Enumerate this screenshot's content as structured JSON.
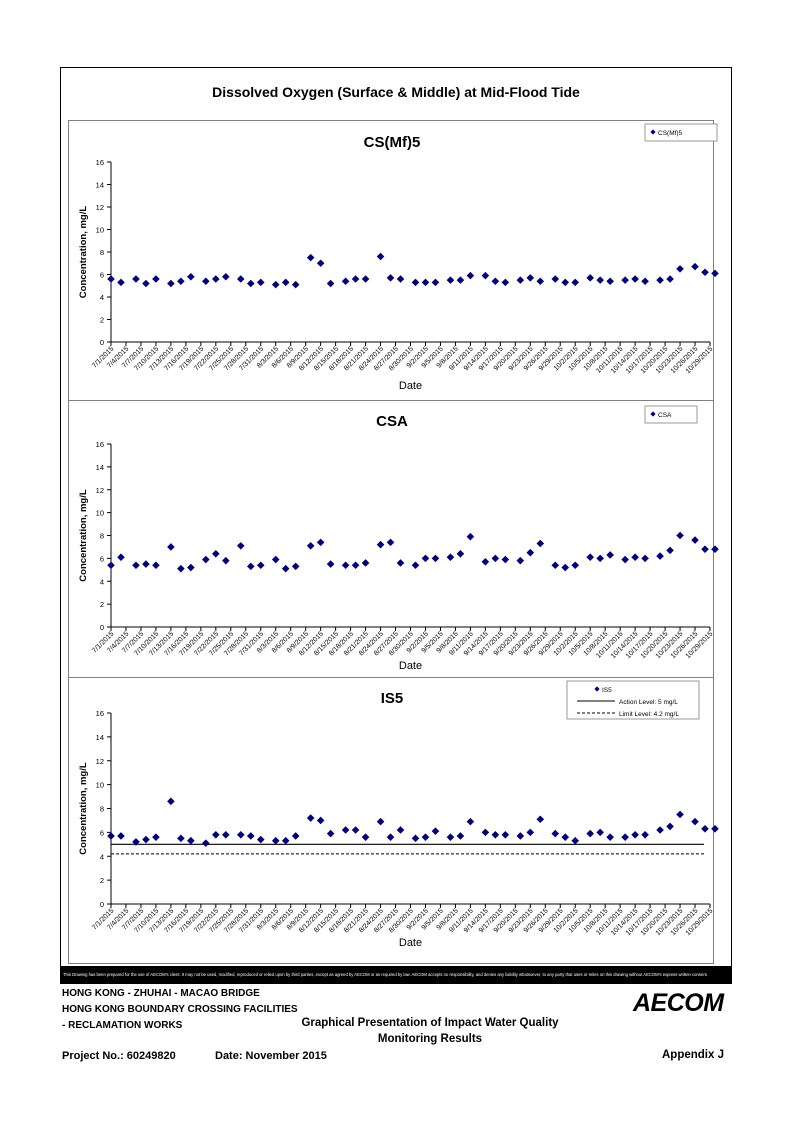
{
  "page_title": "Dissolved Oxygen (Surface & Middle) at Mid-Flood Tide",
  "disclaimer": "This Drawing has been prepared for the use of AECOM's client. It may not be used, modified, reproduced or relied upon by third parties, except as agreed by AECOM or as required by law. AECOM accepts no responsibility, and denies any liability whatsoever, to any party that uses or relies on this drawing without AECOM's express written consent.",
  "footer": {
    "project_line1": "HONG KONG - ZHUHAI - MACAO BRIDGE",
    "project_line2": "HONG KONG BOUNDARY CROSSING FACILITIES",
    "project_line3": "- RECLAMATION WORKS",
    "heading_line1": "Graphical Presentation of Impact Water Quality",
    "heading_line2": "Monitoring Results",
    "project_no": "Project No.: 60249820",
    "date": "Date: November 2015",
    "appendix": "Appendix J",
    "logo": "AECOM"
  },
  "colors": {
    "marker": "#00007f",
    "frame": "#000000",
    "panel_border": "#808080"
  },
  "chart_data": [
    {
      "type": "scatter",
      "title": "CS(Mf)5",
      "xlabel": "Date",
      "ylabel": "Concentration, mg/L",
      "ylim": [
        0,
        16
      ],
      "yticks": [
        "0",
        "2",
        "4",
        "6",
        "8",
        "10",
        "12",
        "14",
        "16"
      ],
      "xticks": [
        "7/1/2015",
        "7/4/2015",
        "7/7/2015",
        "7/10/2015",
        "7/13/2015",
        "7/16/2015",
        "7/19/2015",
        "7/22/2015",
        "7/25/2015",
        "7/28/2015",
        "7/31/2015",
        "8/3/2015",
        "8/6/2015",
        "8/9/2015",
        "8/12/2015",
        "8/15/2015",
        "8/18/2015",
        "8/21/2015",
        "8/24/2015",
        "8/27/2015",
        "8/30/2015",
        "9/2/2015",
        "9/5/2015",
        "9/8/2015",
        "9/11/2015",
        "9/14/2015",
        "9/17/2015",
        "9/20/2015",
        "9/23/2015",
        "9/26/2015",
        "9/29/2015",
        "10/2/2015",
        "10/5/2015",
        "10/8/2015",
        "10/11/2015",
        "10/14/2015",
        "10/17/2015",
        "10/20/2015",
        "10/23/2015",
        "10/26/2015",
        "10/29/2015"
      ],
      "grid": false,
      "legend_position": "top-right",
      "series": [
        {
          "name": "CS(Mf)5",
          "marker": "diamond",
          "x": [
            "7/1/2015",
            "7/3/2015",
            "7/6/2015",
            "7/8/2015",
            "7/10/2015",
            "7/13/2015",
            "7/15/2015",
            "7/17/2015",
            "7/20/2015",
            "7/22/2015",
            "7/24/2015",
            "7/27/2015",
            "7/29/2015",
            "7/31/2015",
            "8/3/2015",
            "8/5/2015",
            "8/7/2015",
            "8/10/2015",
            "8/12/2015",
            "8/14/2015",
            "8/17/2015",
            "8/19/2015",
            "8/21/2015",
            "8/24/2015",
            "8/26/2015",
            "8/28/2015",
            "8/31/2015",
            "9/2/2015",
            "9/4/2015",
            "9/7/2015",
            "9/9/2015",
            "9/11/2015",
            "9/14/2015",
            "9/16/2015",
            "9/18/2015",
            "9/21/2015",
            "9/23/2015",
            "9/25/2015",
            "9/28/2015",
            "9/30/2015",
            "10/2/2015",
            "10/5/2015",
            "10/7/2015",
            "10/9/2015",
            "10/12/2015",
            "10/14/2015",
            "10/16/2015",
            "10/19/2015",
            "10/21/2015",
            "10/23/2015",
            "10/26/2015",
            "10/28/2015",
            "10/30/2015"
          ],
          "y": [
            5.6,
            5.3,
            5.6,
            5.2,
            5.6,
            5.2,
            5.4,
            5.8,
            5.4,
            5.6,
            5.8,
            5.6,
            5.2,
            5.3,
            5.1,
            5.3,
            5.1,
            7.5,
            7.0,
            5.2,
            5.4,
            5.6,
            5.6,
            7.6,
            5.7,
            5.6,
            5.3,
            5.3,
            5.3,
            5.5,
            5.5,
            5.9,
            5.9,
            5.4,
            5.3,
            5.5,
            5.7,
            5.4,
            5.6,
            5.3,
            5.3,
            5.7,
            5.5,
            5.4,
            5.5,
            5.6,
            5.4,
            5.5,
            5.6,
            6.5,
            6.7,
            6.2,
            6.1
          ]
        }
      ]
    },
    {
      "type": "scatter",
      "title": "CSA",
      "xlabel": "Date",
      "ylabel": "Concentration, mg/L",
      "ylim": [
        0,
        16
      ],
      "yticks": [
        "0",
        "2",
        "4",
        "6",
        "8",
        "10",
        "12",
        "14",
        "16"
      ],
      "xticks": [
        "7/1/2015",
        "7/4/2015",
        "7/7/2015",
        "7/10/2015",
        "7/13/2015",
        "7/16/2015",
        "7/19/2015",
        "7/22/2015",
        "7/25/2015",
        "7/28/2015",
        "7/31/2015",
        "8/3/2015",
        "8/6/2015",
        "8/9/2015",
        "8/12/2015",
        "8/15/2015",
        "8/18/2015",
        "8/21/2015",
        "8/24/2015",
        "8/27/2015",
        "8/30/2015",
        "9/2/2015",
        "9/5/2015",
        "9/8/2015",
        "9/11/2015",
        "9/14/2015",
        "9/17/2015",
        "9/20/2015",
        "9/23/2015",
        "9/26/2015",
        "9/29/2015",
        "10/2/2015",
        "10/5/2015",
        "10/8/2015",
        "10/11/2015",
        "10/14/2015",
        "10/17/2015",
        "10/20/2015",
        "10/23/2015",
        "10/26/2015",
        "10/29/2015"
      ],
      "grid": false,
      "legend_position": "top-right",
      "series": [
        {
          "name": "CSA",
          "marker": "diamond",
          "x": [
            "7/1/2015",
            "7/3/2015",
            "7/6/2015",
            "7/8/2015",
            "7/10/2015",
            "7/13/2015",
            "7/15/2015",
            "7/17/2015",
            "7/20/2015",
            "7/22/2015",
            "7/24/2015",
            "7/27/2015",
            "7/29/2015",
            "7/31/2015",
            "8/3/2015",
            "8/5/2015",
            "8/7/2015",
            "8/10/2015",
            "8/12/2015",
            "8/14/2015",
            "8/17/2015",
            "8/19/2015",
            "8/21/2015",
            "8/24/2015",
            "8/26/2015",
            "8/28/2015",
            "8/31/2015",
            "9/2/2015",
            "9/4/2015",
            "9/7/2015",
            "9/9/2015",
            "9/11/2015",
            "9/14/2015",
            "9/16/2015",
            "9/18/2015",
            "9/21/2015",
            "9/23/2015",
            "9/25/2015",
            "9/28/2015",
            "9/30/2015",
            "10/2/2015",
            "10/5/2015",
            "10/7/2015",
            "10/9/2015",
            "10/12/2015",
            "10/14/2015",
            "10/16/2015",
            "10/19/2015",
            "10/21/2015",
            "10/23/2015",
            "10/26/2015",
            "10/28/2015",
            "10/30/2015"
          ],
          "y": [
            5.4,
            6.1,
            5.4,
            5.5,
            5.4,
            7.0,
            5.1,
            5.2,
            5.9,
            6.4,
            5.8,
            7.1,
            5.3,
            5.4,
            5.9,
            5.1,
            5.3,
            7.1,
            7.4,
            5.5,
            5.4,
            5.4,
            5.6,
            7.2,
            7.4,
            5.6,
            5.4,
            6.0,
            6.0,
            6.1,
            6.4,
            7.9,
            5.7,
            6.0,
            5.9,
            5.8,
            6.5,
            7.3,
            5.4,
            5.2,
            5.4,
            6.1,
            6.0,
            6.3,
            5.9,
            6.1,
            6.0,
            6.2,
            6.7,
            8.0,
            7.6,
            6.8,
            6.8
          ]
        }
      ]
    },
    {
      "type": "scatter",
      "title": "IS5",
      "xlabel": "Date",
      "ylabel": "Concentration, mg/L",
      "ylim": [
        0,
        16
      ],
      "yticks": [
        "0",
        "2",
        "4",
        "6",
        "8",
        "10",
        "12",
        "14",
        "16"
      ],
      "xticks": [
        "7/1/2015",
        "7/4/2015",
        "7/7/2015",
        "7/10/2015",
        "7/13/2015",
        "7/16/2015",
        "7/19/2015",
        "7/22/2015",
        "7/25/2015",
        "7/28/2015",
        "7/31/2015",
        "8/3/2015",
        "8/6/2015",
        "8/9/2015",
        "8/12/2015",
        "8/15/2015",
        "8/18/2015",
        "8/21/2015",
        "8/24/2015",
        "8/27/2015",
        "8/30/2015",
        "9/2/2015",
        "9/5/2015",
        "9/8/2015",
        "9/11/2015",
        "9/14/2015",
        "9/17/2015",
        "9/20/2015",
        "9/23/2015",
        "9/26/2015",
        "9/29/2015",
        "10/2/2015",
        "10/5/2015",
        "10/8/2015",
        "10/11/2015",
        "10/14/2015",
        "10/17/2015",
        "10/20/2015",
        "10/23/2015",
        "10/26/2015",
        "10/29/2015"
      ],
      "grid": false,
      "legend_position": "top-right",
      "series": [
        {
          "name": "IS5",
          "marker": "diamond",
          "x": [
            "7/1/2015",
            "7/3/2015",
            "7/6/2015",
            "7/8/2015",
            "7/10/2015",
            "7/13/2015",
            "7/15/2015",
            "7/17/2015",
            "7/20/2015",
            "7/22/2015",
            "7/24/2015",
            "7/27/2015",
            "7/29/2015",
            "7/31/2015",
            "8/3/2015",
            "8/5/2015",
            "8/7/2015",
            "8/10/2015",
            "8/12/2015",
            "8/14/2015",
            "8/17/2015",
            "8/19/2015",
            "8/21/2015",
            "8/24/2015",
            "8/26/2015",
            "8/28/2015",
            "8/31/2015",
            "9/2/2015",
            "9/4/2015",
            "9/7/2015",
            "9/9/2015",
            "9/11/2015",
            "9/14/2015",
            "9/16/2015",
            "9/18/2015",
            "9/21/2015",
            "9/23/2015",
            "9/25/2015",
            "9/28/2015",
            "9/30/2015",
            "10/2/2015",
            "10/5/2015",
            "10/7/2015",
            "10/9/2015",
            "10/12/2015",
            "10/14/2015",
            "10/16/2015",
            "10/19/2015",
            "10/21/2015",
            "10/23/2015",
            "10/26/2015",
            "10/28/2015",
            "10/30/2015"
          ],
          "y": [
            5.7,
            5.7,
            5.2,
            5.4,
            5.6,
            8.6,
            5.5,
            5.3,
            5.1,
            5.8,
            5.8,
            5.8,
            5.7,
            5.4,
            5.3,
            5.3,
            5.7,
            7.2,
            7.0,
            5.9,
            6.2,
            6.2,
            5.6,
            6.9,
            5.6,
            6.2,
            5.5,
            5.6,
            6.1,
            5.6,
            5.7,
            6.9,
            6.0,
            5.8,
            5.8,
            5.7,
            6.0,
            7.1,
            5.9,
            5.6,
            5.3,
            5.9,
            6.0,
            5.6,
            5.6,
            5.8,
            5.8,
            6.2,
            6.5,
            7.5,
            6.9,
            6.3,
            6.3
          ]
        }
      ],
      "reference_lines": [
        {
          "name": "Action Level: 5 mg/L",
          "y": 5,
          "style": "solid"
        },
        {
          "name": "Limit Level: 4.2 mg/L",
          "y": 4.2,
          "style": "dashed"
        }
      ]
    }
  ]
}
